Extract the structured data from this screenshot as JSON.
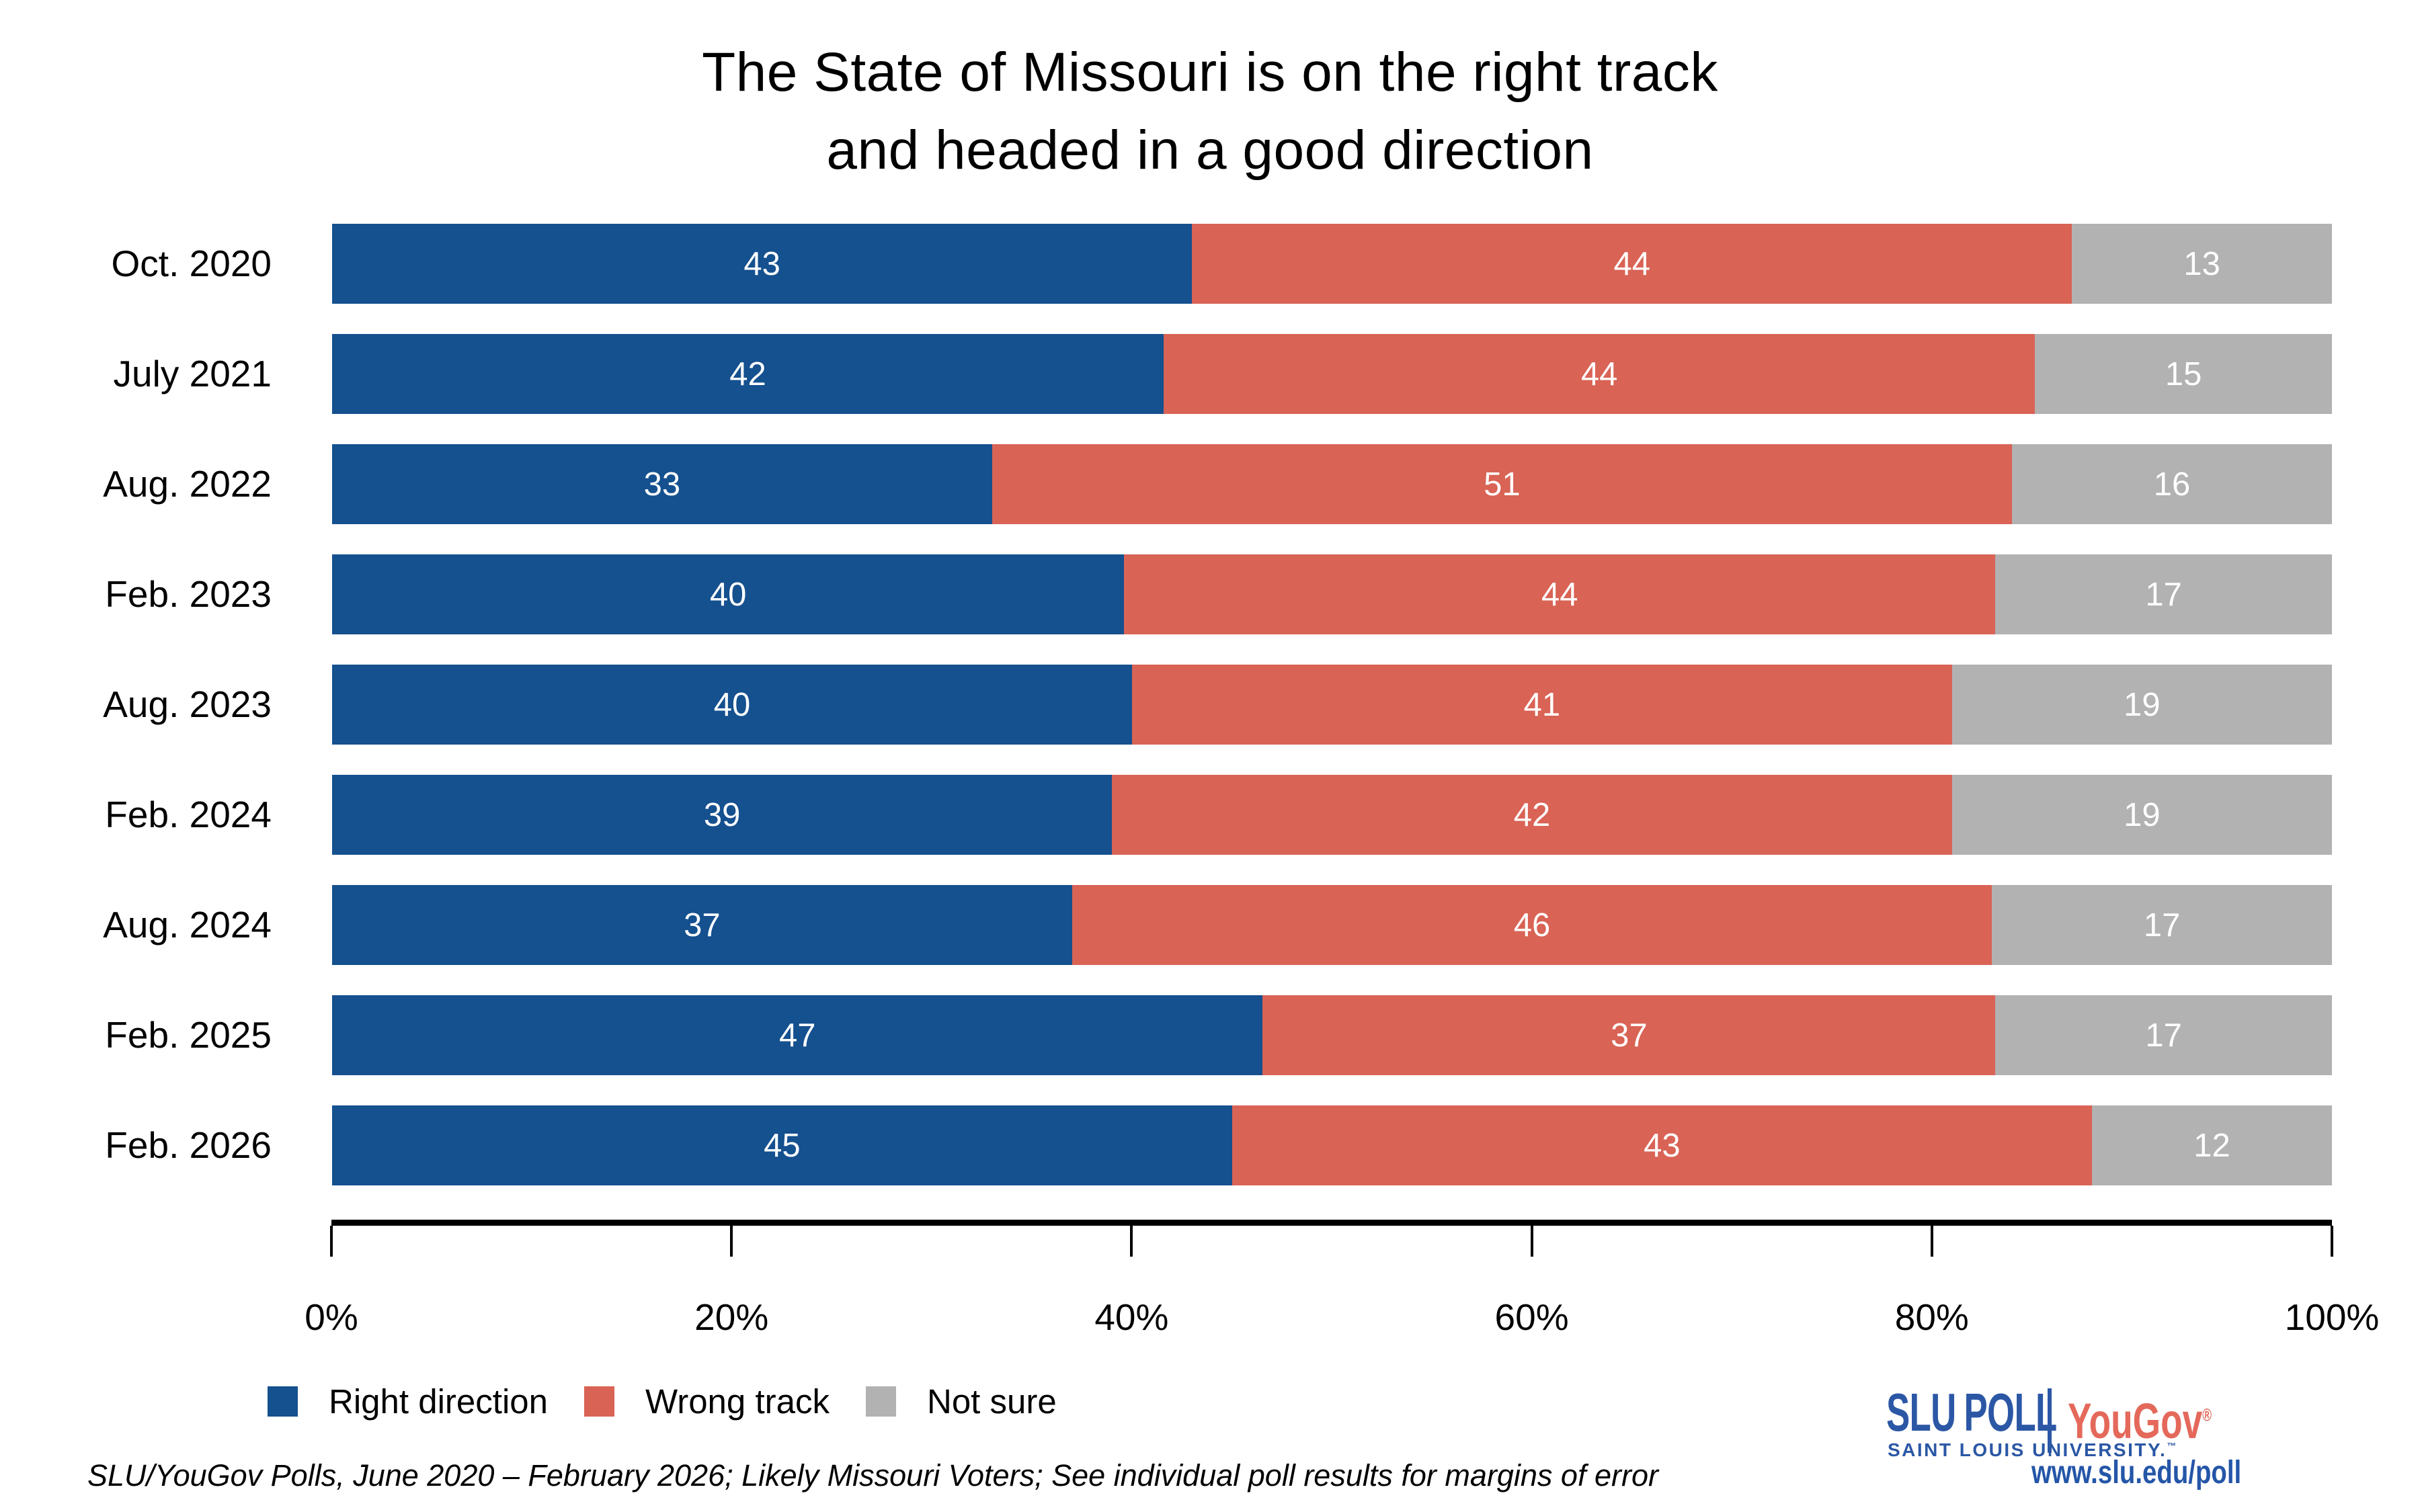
{
  "title": {
    "line1": "The State of Missouri is on the right track",
    "line2": "and headed in a good direction"
  },
  "chart_data": {
    "type": "bar",
    "stacked": true,
    "orientation": "horizontal",
    "categories": [
      "Oct. 2020",
      "July 2021",
      "Aug. 2022",
      "Feb. 2023",
      "Aug. 2023",
      "Feb. 2024",
      "Aug. 2024",
      "Feb. 2025",
      "Feb. 2026"
    ],
    "series": [
      {
        "name": "Right direction",
        "color": "#15508F",
        "values": [
          43,
          42,
          33,
          40,
          40,
          39,
          37,
          47,
          45
        ]
      },
      {
        "name": "Wrong track",
        "color": "#D96355",
        "values": [
          44,
          44,
          51,
          44,
          41,
          42,
          46,
          37,
          43
        ]
      },
      {
        "name": "Not sure",
        "color": "#B2B2B2",
        "values": [
          13,
          15,
          16,
          17,
          19,
          19,
          17,
          17,
          12
        ]
      }
    ],
    "value_labels": "white, centered in each segment",
    "xlim": [
      0,
      100
    ],
    "x_ticks": [
      "0%",
      "20%",
      "40%",
      "60%",
      "80%",
      "100%"
    ],
    "grid": false,
    "legend_position": "bottom-left"
  },
  "footer": {
    "source_note": "SLU/YouGov Polls, June 2020 – February 2026; Likely Missouri Voters; See individual poll results for margins of error"
  },
  "branding": {
    "slu_word1": "SLU",
    "slu_word2": "POLL",
    "slu_sub": "SAINT LOUIS UNIVERSITY.",
    "tm": "™",
    "partner": "YouGov",
    "reg": "®",
    "url": "www.slu.edu/poll",
    "slu_blue": "#2B57A5",
    "yougov_red": "#E4695B"
  }
}
